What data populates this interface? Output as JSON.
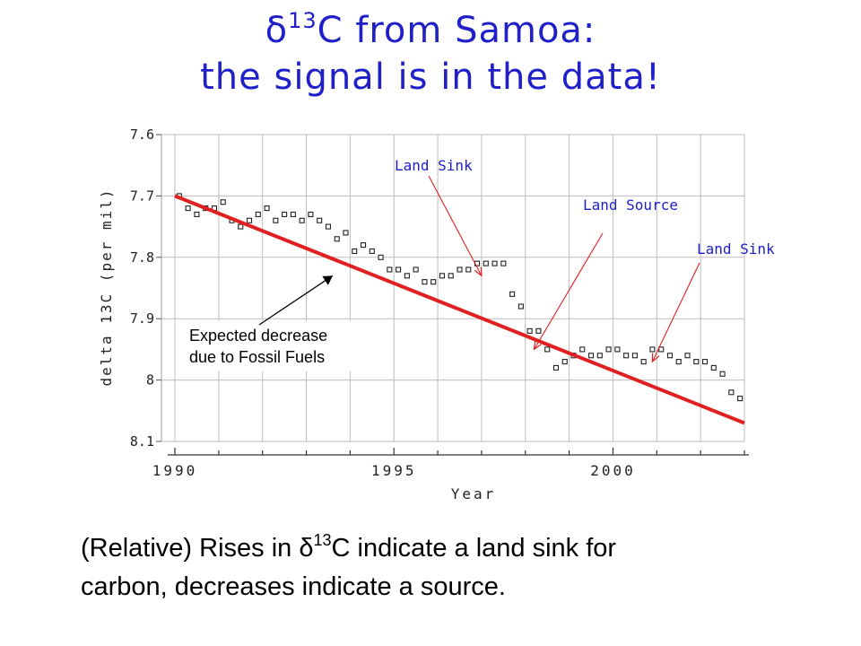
{
  "slide": {
    "title_symbol": "δ",
    "title_superscript": "13",
    "title_line1_rest": "C from Samoa:",
    "title_line2": "the signal is in the data!",
    "caption_prefix": "(Relative) Rises in δ",
    "caption_superscript": "13",
    "caption_line1_rest": "C indicate a land sink for",
    "caption_line2": "carbon, decreases indicate a source.",
    "title_color": "#2020c8"
  },
  "chart_data": {
    "type": "scatter",
    "xlabel": "Year",
    "ylabel": "delta 13C (per mil)",
    "xlim": [
      1990,
      2003
    ],
    "ylim": [
      7.6,
      8.1
    ],
    "y_inverted": true,
    "x_ticks": [
      "1990",
      "1995",
      "2000"
    ],
    "y_ticks": [
      "7.6",
      "7.7",
      "7.8",
      "7.9",
      "8",
      "8.1"
    ],
    "grid": true,
    "marker": "open-square",
    "series": [
      {
        "x": [
          1990.1,
          1990.3,
          1990.5,
          1990.7,
          1990.9,
          1991.1,
          1991.3,
          1991.5,
          1991.7,
          1991.9,
          1992.1,
          1992.3,
          1992.5,
          1992.7,
          1992.9,
          1993.1,
          1993.3,
          1993.5,
          1993.7,
          1993.9,
          1994.1,
          1994.3,
          1994.5,
          1994.7,
          1994.9,
          1995.1,
          1995.3,
          1995.5,
          1995.7,
          1995.9,
          1996.1,
          1996.3,
          1996.5,
          1996.7,
          1996.9,
          1997.1,
          1997.3,
          1997.5,
          1997.7,
          1997.9,
          1998.1,
          1998.3,
          1998.5,
          1998.7,
          1998.9,
          1999.1,
          1999.3,
          1999.5,
          1999.7,
          1999.9,
          2000.1,
          2000.3,
          2000.5,
          2000.7,
          2000.9,
          2001.1,
          2001.3,
          2001.5,
          2001.7,
          2001.9,
          2002.1,
          2002.3,
          2002.5,
          2002.7,
          2002.9
        ],
        "y": [
          7.7,
          7.72,
          7.73,
          7.72,
          7.72,
          7.71,
          7.74,
          7.75,
          7.74,
          7.73,
          7.72,
          7.74,
          7.73,
          7.73,
          7.74,
          7.73,
          7.74,
          7.75,
          7.77,
          7.76,
          7.79,
          7.78,
          7.79,
          7.8,
          7.82,
          7.82,
          7.83,
          7.82,
          7.84,
          7.84,
          7.83,
          7.83,
          7.82,
          7.82,
          7.81,
          7.81,
          7.81,
          7.81,
          7.86,
          7.88,
          7.92,
          7.92,
          7.95,
          7.98,
          7.97,
          7.96,
          7.95,
          7.96,
          7.96,
          7.95,
          7.95,
          7.96,
          7.96,
          7.97,
          7.95,
          7.95,
          7.96,
          7.97,
          7.96,
          7.97,
          7.97,
          7.98,
          7.99,
          8.02,
          8.03
        ]
      }
    ],
    "trend_line": {
      "name": "Expected decrease due to Fossil Fuels",
      "x": [
        1990,
        2003
      ],
      "y": [
        7.7,
        8.07
      ],
      "color": "#e02020"
    },
    "annotations": [
      {
        "text": "Land Sink",
        "color": "#2020c8",
        "target_x": 1997.0,
        "target_y": 7.83
      },
      {
        "text": "Land Source",
        "color": "#2020c8",
        "target_x": 1998.2,
        "target_y": 7.95
      },
      {
        "text": "Land Sink",
        "color": "#2020c8",
        "target_x": 2000.9,
        "target_y": 7.97
      },
      {
        "text": "Expected decrease due to Fossil Fuels",
        "lines": [
          "Expected decrease",
          "due to Fossil Fuels"
        ],
        "color": "#000000",
        "target_x": 1993.6,
        "target_y": 7.83
      }
    ]
  }
}
